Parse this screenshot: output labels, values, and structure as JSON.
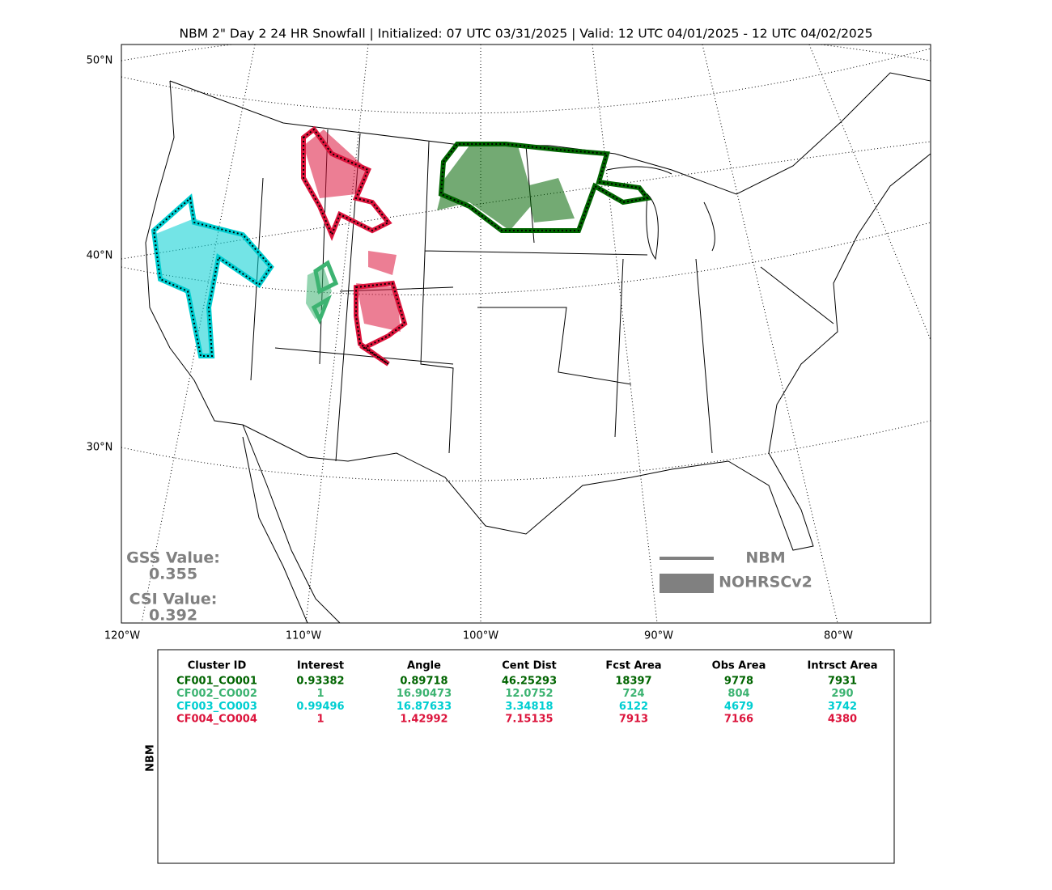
{
  "title": "NBM 2\" Day 2 24 HR Snowfall | Initialized: 07 UTC 03/31/2025 | Valid: 12 UTC 04/01/2025 - 12 UTC 04/02/2025",
  "map": {
    "lat_labels": [
      "50°N",
      "40°N",
      "30°N"
    ],
    "lon_labels": [
      "120°W",
      "110°W",
      "100°W",
      "90°W",
      "80°W"
    ]
  },
  "scores": {
    "gss_label": "GSS Value:",
    "gss_value": 0.355,
    "csi_label": "CSI Value:",
    "csi_value": 0.392
  },
  "legend": {
    "forecast": "NBM",
    "observed": "NOHRSCv2"
  },
  "table": {
    "side_label": "NBM",
    "headers": [
      "Cluster ID",
      "Interest",
      "Angle",
      "Cent Dist",
      "Fcst Area",
      "Obs Area",
      "Intrsct Area"
    ],
    "rows": [
      {
        "color": "#006400",
        "cells": [
          "CF001_CO001",
          0.93382,
          0.89718,
          46.25293,
          18397,
          9778,
          7931
        ]
      },
      {
        "color": "#3cb371",
        "cells": [
          "CF002_CO002",
          1,
          16.90473,
          12.0752,
          724,
          804,
          290
        ]
      },
      {
        "color": "#00ced1",
        "cells": [
          "CF003_CO003",
          0.99496,
          16.87633,
          3.34818,
          6122,
          4679,
          3742
        ]
      },
      {
        "color": "#dc143c",
        "cells": [
          "CF004_CO004",
          1,
          1.42992,
          7.15135,
          7913,
          7166,
          4380
        ]
      }
    ]
  }
}
